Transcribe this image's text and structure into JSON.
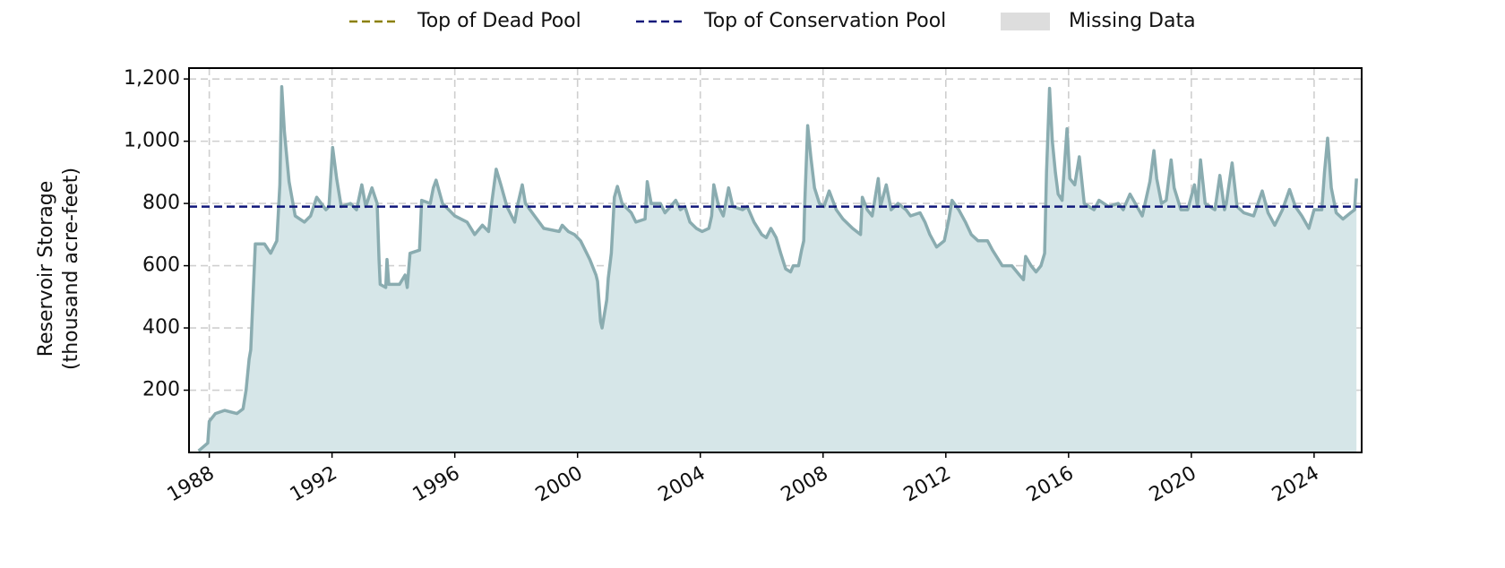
{
  "chart_data": {
    "type": "area",
    "ylabel": [
      "Reservoir Storage",
      "(thousand acre-feet)"
    ],
    "xlim": [
      1987.34,
      2025.55
    ],
    "ylim": [
      0,
      1235
    ],
    "xticks": [
      1988,
      1992,
      1996,
      2000,
      2004,
      2008,
      2012,
      2016,
      2020,
      2024
    ],
    "yticks": [
      200,
      400,
      600,
      800,
      {
        "value": 1000,
        "label": "1,000"
      },
      {
        "value": 1200,
        "label": "1,200"
      }
    ],
    "grid": true,
    "legend": [
      {
        "name": "Top of Dead Pool",
        "color": "#8b8000",
        "style": "dashed"
      },
      {
        "name": "Top of Conservation Pool",
        "color": "#10187a",
        "style": "dashed"
      },
      {
        "name": "Missing Data",
        "color": "#dddddd",
        "style": "box"
      }
    ],
    "hlines": [
      {
        "name": "Top of Conservation Pool",
        "value": 790,
        "color": "#10187a"
      }
    ],
    "series": [
      {
        "color": "#8aacb0",
        "fill": "#d6e6e8",
        "x": [
          1987.65,
          1987.95,
          1988.0,
          1988.2,
          1988.5,
          1988.9,
          1989.1,
          1989.2,
          1989.3,
          1989.35,
          1989.42,
          1989.5,
          1989.8,
          1990.0,
          1990.2,
          1990.3,
          1990.36,
          1990.45,
          1990.6,
          1990.8,
          1991.1,
          1991.3,
          1991.5,
          1991.8,
          1991.9,
          1992.02,
          1992.15,
          1992.3,
          1992.6,
          1992.8,
          1992.97,
          1993.1,
          1993.3,
          1993.47,
          1993.53,
          1993.57,
          1993.75,
          1993.79,
          1993.85,
          1994.2,
          1994.38,
          1994.45,
          1994.54,
          1994.85,
          1994.92,
          1995.2,
          1995.3,
          1995.39,
          1995.6,
          1996.0,
          1996.4,
          1996.65,
          1996.9,
          1997.1,
          1997.2,
          1997.35,
          1997.5,
          1997.7,
          1997.95,
          1998.06,
          1998.2,
          1998.3,
          1998.6,
          1998.9,
          1999.4,
          1999.5,
          1999.7,
          1999.9,
          2000.1,
          2000.4,
          2000.6,
          2000.65,
          2000.75,
          2000.8,
          2000.95,
          2001.0,
          2001.1,
          2001.2,
          2001.3,
          2001.45,
          2001.75,
          2001.9,
          2002.2,
          2002.27,
          2002.4,
          2002.7,
          2002.85,
          2003.03,
          2003.2,
          2003.35,
          2003.5,
          2003.66,
          2003.87,
          2004.06,
          2004.28,
          2004.37,
          2004.44,
          2004.6,
          2004.75,
          2004.92,
          2005.06,
          2005.38,
          2005.53,
          2005.75,
          2006.0,
          2006.15,
          2006.3,
          2006.47,
          2006.62,
          2006.78,
          2006.94,
          2007.03,
          2007.2,
          2007.3,
          2007.37,
          2007.4,
          2007.5,
          2007.6,
          2007.72,
          2007.88,
          2008.03,
          2008.2,
          2008.43,
          2008.65,
          2008.96,
          2009.22,
          2009.28,
          2009.44,
          2009.6,
          2009.8,
          2009.87,
          2010.06,
          2010.22,
          2010.44,
          2010.7,
          2010.85,
          2011.16,
          2011.32,
          2011.48,
          2011.7,
          2011.95,
          2012.1,
          2012.2,
          2012.42,
          2012.64,
          2012.83,
          2013.05,
          2013.36,
          2013.52,
          2013.84,
          2014.15,
          2014.4,
          2014.53,
          2014.6,
          2014.78,
          2014.94,
          2015.1,
          2015.22,
          2015.28,
          2015.38,
          2015.47,
          2015.57,
          2015.66,
          2015.79,
          2015.85,
          2015.95,
          2016.04,
          2016.2,
          2016.35,
          2016.51,
          2016.83,
          2016.99,
          2017.3,
          2017.62,
          2017.78,
          2018.0,
          2018.4,
          2018.65,
          2018.78,
          2018.87,
          2019.03,
          2019.18,
          2019.34,
          2019.44,
          2019.66,
          2019.88,
          2020.1,
          2020.2,
          2020.3,
          2020.45,
          2020.77,
          2020.93,
          2021.08,
          2021.14,
          2021.33,
          2021.49,
          2021.71,
          2022.03,
          2022.31,
          2022.5,
          2022.72,
          2022.97,
          2023.2,
          2023.39,
          2023.6,
          2023.83,
          2024.0,
          2024.25,
          2024.34,
          2024.44,
          2024.56,
          2024.72,
          2024.94,
          2025.19,
          2025.32,
          2025.38
        ],
        "values": [
          5,
          30,
          100,
          125,
          135,
          125,
          140,
          200,
          300,
          330,
          490,
          670,
          670,
          640,
          680,
          860,
          1175,
          1030,
          870,
          760,
          740,
          760,
          820,
          780,
          790,
          980,
          880,
          790,
          800,
          780,
          860,
          790,
          850,
          800,
          620,
          540,
          530,
          620,
          540,
          540,
          570,
          530,
          640,
          650,
          810,
          800,
          850,
          875,
          800,
          760,
          740,
          700,
          730,
          710,
          800,
          910,
          860,
          790,
          740,
          800,
          860,
          800,
          760,
          720,
          710,
          730,
          710,
          700,
          680,
          620,
          570,
          550,
          420,
          400,
          490,
          560,
          640,
          820,
          855,
          800,
          770,
          740,
          750,
          870,
          800,
          800,
          770,
          790,
          810,
          780,
          790,
          740,
          720,
          710,
          720,
          760,
          860,
          790,
          760,
          850,
          790,
          780,
          790,
          740,
          700,
          690,
          720,
          690,
          640,
          590,
          580,
          600,
          600,
          650,
          680,
          790,
          1050,
          950,
          850,
          800,
          790,
          840,
          780,
          750,
          720,
          700,
          820,
          780,
          760,
          880,
          790,
          860,
          780,
          800,
          780,
          760,
          770,
          740,
          700,
          660,
          680,
          750,
          810,
          780,
          740,
          700,
          680,
          680,
          650,
          600,
          600,
          570,
          555,
          630,
          600,
          580,
          600,
          640,
          900,
          1170,
          1000,
          900,
          830,
          810,
          900,
          1040,
          880,
          860,
          950,
          800,
          780,
          810,
          790,
          800,
          780,
          830,
          760,
          870,
          970,
          880,
          800,
          810,
          940,
          850,
          780,
          780,
          860,
          790,
          940,
          800,
          780,
          890,
          780,
          800,
          930,
          790,
          770,
          760,
          840,
          770,
          730,
          780,
          845,
          790,
          760,
          720,
          780,
          780,
          900,
          1010,
          850,
          770,
          750,
          770,
          780,
          880
        ]
      }
    ]
  }
}
